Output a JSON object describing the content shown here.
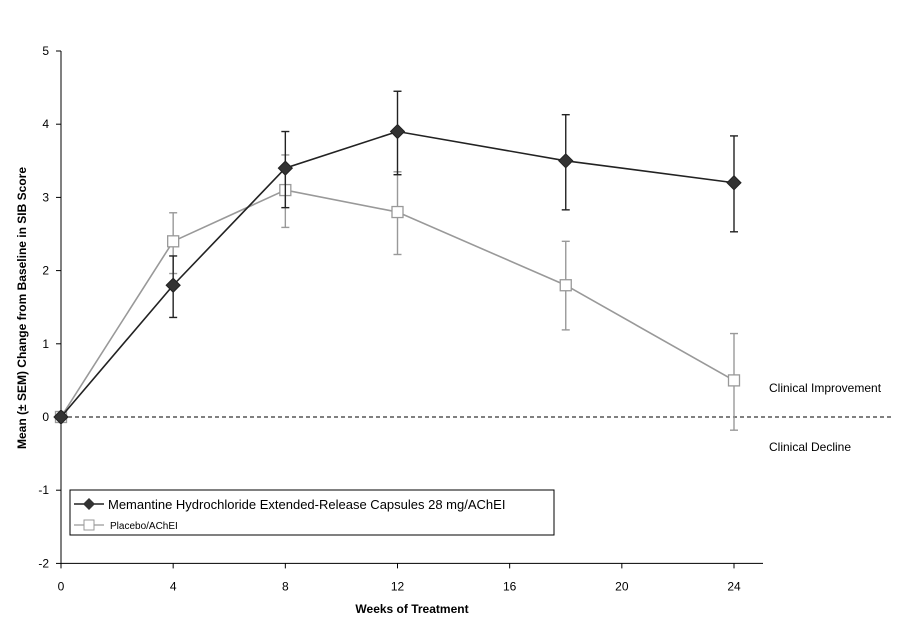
{
  "chart_data": {
    "type": "line",
    "title": "",
    "xlabel": "Weeks of Treatment",
    "ylabel": "Mean (± SEM) Change from Baseline in SIB Score",
    "xlim": [
      0,
      25
    ],
    "ylim": [
      -2,
      5
    ],
    "xticks": [
      0,
      4,
      8,
      12,
      16,
      20,
      24
    ],
    "yticks": [
      -2,
      -1,
      0,
      1,
      2,
      3,
      4,
      5
    ],
    "grid": false,
    "legend_position": "bottom-left",
    "reference_line": {
      "y": 0,
      "style": "dashed"
    },
    "annotations": [
      {
        "text": "Clinical Improvement",
        "x": 25,
        "y": 0.4
      },
      {
        "text": "Clinical Decline",
        "x": 25,
        "y": -0.4
      }
    ],
    "series": [
      {
        "name": "Memantine Hydrochloride Extended-Release Capsules 28 mg/AChEI",
        "color": "#222222",
        "marker": "diamond-filled",
        "x": [
          0,
          4,
          8,
          12,
          18,
          24
        ],
        "y": [
          0,
          1.8,
          3.4,
          3.9,
          3.5,
          3.2
        ],
        "err_low": [
          0,
          1.36,
          2.86,
          3.31,
          2.83,
          2.53
        ],
        "err_high": [
          0,
          2.2,
          3.9,
          4.45,
          4.13,
          3.84
        ]
      },
      {
        "name": "Placebo/AChEI",
        "color": "#999999",
        "marker": "square-open",
        "x": [
          0,
          4,
          8,
          12,
          18,
          24
        ],
        "y": [
          0,
          2.4,
          3.1,
          2.8,
          1.8,
          0.5
        ],
        "err_low": [
          0,
          1.96,
          2.59,
          2.22,
          1.19,
          -0.18
        ],
        "err_high": [
          0,
          2.79,
          3.58,
          3.35,
          2.4,
          1.14
        ]
      }
    ]
  }
}
